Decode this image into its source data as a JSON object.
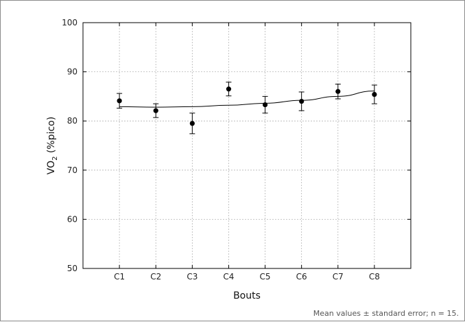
{
  "caption": "Mean values ± standard error; n = 15.",
  "chart_data": {
    "type": "scatter",
    "title": "",
    "xlabel": "Bouts",
    "ylabel_main": "VO",
    "ylabel_sub": "2",
    "ylabel_rest": " (%pico)",
    "categories": [
      "C1",
      "C2",
      "C3",
      "C4",
      "C5",
      "C6",
      "C7",
      "C8"
    ],
    "series": [
      {
        "values": [
          84.1,
          82.1,
          79.5,
          86.5,
          83.3,
          84.0,
          86.0,
          85.4
        ],
        "error": [
          1.5,
          1.4,
          2.1,
          1.4,
          1.7,
          1.9,
          1.5,
          1.9
        ]
      }
    ],
    "trend": [
      82.9,
      82.8,
      82.9,
      83.2,
      83.6,
      84.2,
      85.0,
      86.1
    ],
    "ylim": [
      50,
      100
    ],
    "yticks": [
      50,
      60,
      70,
      80,
      90,
      100
    ],
    "grid": true,
    "colors": {
      "marker": "#000000",
      "grid": "#b5b5b5",
      "axis": "#000000"
    }
  }
}
